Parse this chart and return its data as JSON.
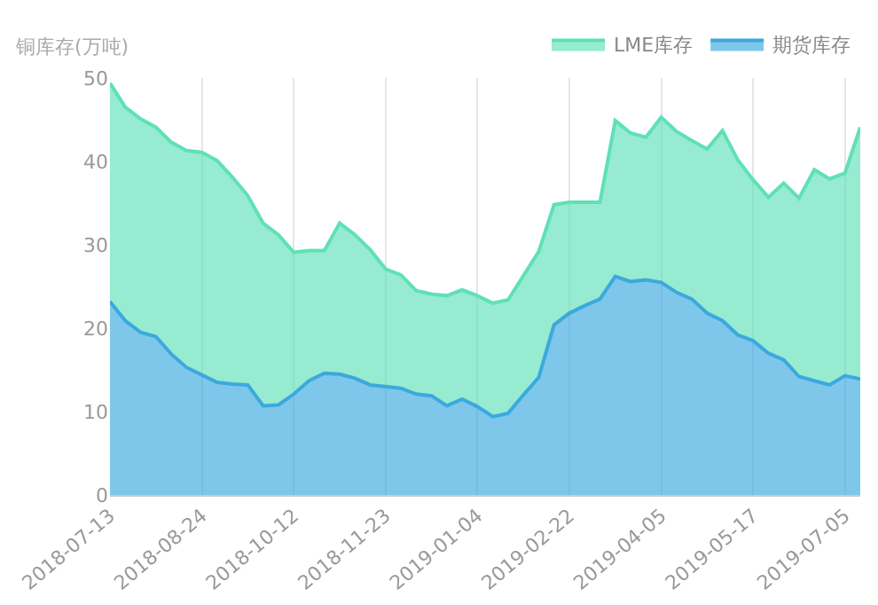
{
  "chart_data": {
    "type": "area",
    "stacked": true,
    "ylabel": "铜库存(万吨)",
    "categories": [
      "2018-07-13",
      null,
      null,
      null,
      null,
      null,
      "2018-08-24",
      null,
      null,
      null,
      null,
      null,
      "2018-10-12",
      null,
      null,
      null,
      null,
      null,
      "2018-11-23",
      null,
      null,
      null,
      null,
      null,
      "2019-01-04",
      null,
      null,
      null,
      null,
      null,
      "2019-02-22",
      null,
      null,
      null,
      null,
      null,
      "2019-04-05",
      null,
      null,
      null,
      null,
      null,
      "2019-05-17",
      null,
      null,
      null,
      null,
      null,
      "2019-07-05",
      null
    ],
    "series": [
      {
        "name": "期货库存",
        "color": "#3ba9de",
        "values": [
          23.2,
          20.9,
          19.5,
          19.0,
          16.9,
          15.3,
          14.4,
          13.5,
          13.3,
          13.2,
          10.7,
          10.8,
          12.1,
          13.7,
          14.6,
          14.5,
          14.0,
          13.2,
          13.0,
          12.8,
          12.1,
          11.9,
          10.7,
          11.5,
          10.6,
          9.4,
          9.8,
          12.0,
          14.1,
          20.4,
          21.8,
          22.7,
          23.5,
          26.2,
          25.6,
          25.8,
          25.5,
          24.3,
          23.5,
          21.8,
          20.9,
          19.2,
          18.5,
          17.0,
          16.2,
          14.2,
          13.7,
          13.2,
          14.3,
          13.9
        ]
      },
      {
        "name": "LME库存",
        "color": "#5fe0b8",
        "values": [
          26.2,
          25.6,
          25.6,
          25.1,
          25.4,
          26.0,
          26.7,
          26.6,
          24.8,
          22.7,
          21.9,
          20.4,
          17.0,
          15.6,
          14.7,
          18.1,
          17.2,
          16.2,
          14.1,
          13.6,
          12.4,
          12.2,
          13.2,
          13.1,
          13.3,
          13.6,
          13.6,
          14.3,
          15.1,
          14.4,
          13.3,
          12.4,
          11.6,
          18.7,
          17.8,
          17.1,
          19.8,
          19.3,
          19.0,
          19.7,
          22.8,
          21.0,
          19.3,
          18.7,
          21.2,
          21.4,
          25.3,
          24.7,
          24.3,
          30.2
        ]
      }
    ],
    "ylim": [
      0,
      50
    ],
    "yticks": [
      0,
      10,
      20,
      30,
      40,
      50
    ],
    "grid": "x",
    "legend": "top right",
    "marker": "none"
  }
}
